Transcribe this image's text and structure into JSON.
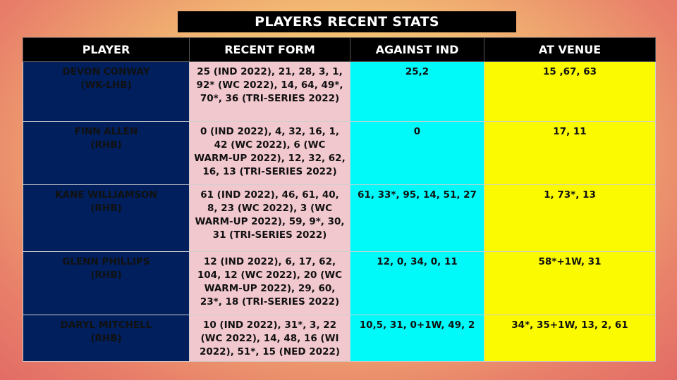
{
  "title": "PLAYERS RECENT STATS",
  "headers": [
    "PLAYER",
    "RECENT FORM",
    "AGAINST IND",
    "AT VENUE"
  ],
  "rows": [
    {
      "name": "DEVON CONWAY",
      "role": "(WK-LHB)",
      "recent_form": "25 (IND 2022), 21, 28, 3, 1, 92* (WC 2022), 14, 64, 49*, 70*, 36 (TRI-SERIES 2022)",
      "against_ind": "25,2",
      "at_venue": "15 ,67, 63"
    },
    {
      "name": "FINN ALLEN",
      "role": "(RHB)",
      "recent_form": "0 (IND 2022), 4, 32, 16, 1, 42 (WC 2022), 6 (WC WARM-UP 2022), 12, 32, 62, 16, 13 (TRI-SERIES 2022)",
      "against_ind": "0",
      "at_venue": "17, 11"
    },
    {
      "name": "KANE WILLIAMSON",
      "role": "(RHB)",
      "recent_form": "61 (IND 2022), 46, 61, 40, 8, 23 (WC 2022), 3 (WC WARM-UP 2022), 59, 9*, 30, 31 (TRI-SERIES 2022)",
      "against_ind": "61, 33*, 95, 14, 51, 27",
      "at_venue": "1, 73*, 13"
    },
    {
      "name": "GLENN PHILLIPS",
      "role": "(RHB)",
      "recent_form": "12 (IND 2022), 6, 17, 62, 104, 12 (WC 2022), 20 (WC WARM-UP 2022), 29, 60, 23*, 18 (TRI-SERIES 2022)",
      "against_ind": "12, 0, 34, 0, 11",
      "at_venue": "58*+1W, 31"
    },
    {
      "name": "DARYL MITCHELL",
      "role": "(RHB)",
      "recent_form": "10 (IND 2022), 31*, 3, 22 (WC 2022), 14, 48, 16 (WI 2022), 51*, 15 (NED 2022)",
      "against_ind": "10,5, 31, 0+1W, 49, 2",
      "at_venue": "34*, 35+1W, 13, 2, 61"
    }
  ]
}
